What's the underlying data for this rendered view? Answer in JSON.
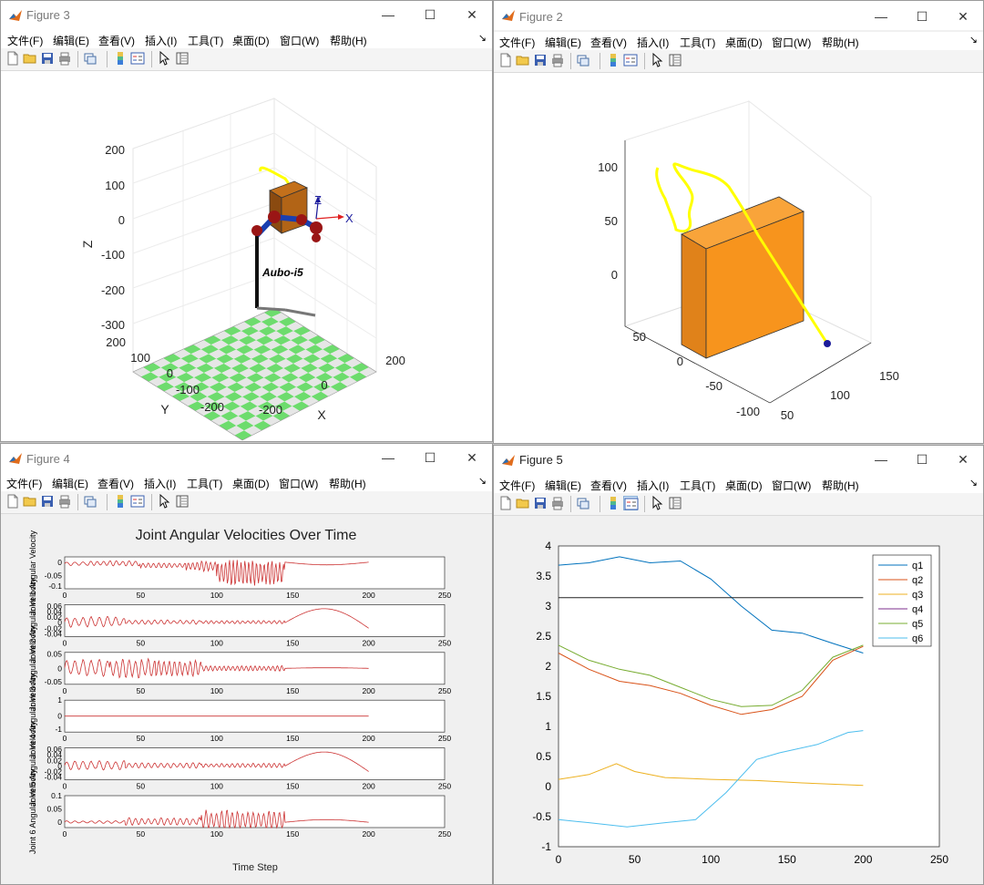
{
  "menu": [
    "文件(F)",
    "编辑(E)",
    "查看(V)",
    "插入(I)",
    "工具(T)",
    "桌面(D)",
    "窗口(W)",
    "帮助(H)"
  ],
  "window_buttons": {
    "minimize": "—",
    "maximize": "☐",
    "close": "✕"
  },
  "toolbar_icons": [
    "new-figure-icon",
    "open-file-icon",
    "save-icon",
    "print-icon",
    "link-plot-icon",
    "insert-colorbar-icon",
    "insert-legend-icon",
    "edit-plot-arrow-icon",
    "property-inspector-icon"
  ],
  "colors": {
    "accent_orange": "#f7941d",
    "path_yellow": "#ffff00",
    "checker_green": "#6ddc6d",
    "velocity_red": "#cc3333",
    "q_colors": [
      "#0072bd",
      "#d95319",
      "#edb120",
      "#7e2f8e",
      "#77ac30",
      "#4dbeee"
    ]
  },
  "fig3": {
    "title": "Figure 3",
    "label": "Aubo-i5",
    "xlabel": "X",
    "ylabel": "Y",
    "zlabel": "Z",
    "zticks": [
      "200",
      "100",
      "0",
      "-100",
      "-200",
      "-300"
    ],
    "yticks": [
      "200",
      "100",
      "0",
      "-100",
      "-200"
    ],
    "xticks": [
      "-200",
      "0",
      "200"
    ],
    "frame_x": "X",
    "frame_z": "Z"
  },
  "fig2": {
    "title": "Figure 2",
    "zticks": [
      "100",
      "50",
      "0"
    ],
    "yticks": [
      "50",
      "0",
      "-50",
      "-100"
    ],
    "xticks": [
      "50",
      "100",
      "150"
    ]
  },
  "fig4": {
    "title": "Figure 4",
    "chart_data": {
      "type": "line",
      "title": "Joint Angular Velocities Over Time",
      "xlabel": "Time Step",
      "xlim": [
        0,
        250
      ],
      "xticks": [
        "0",
        "50",
        "100",
        "150",
        "200",
        "250"
      ],
      "subplots": [
        {
          "ylabel": "Joint 1 Angular Velocity",
          "yticks": [
            "0",
            "-0.05",
            "-0.1"
          ],
          "ylim": [
            -0.1,
            0.02
          ],
          "segments": [
            [
              0,
              15,
              0.008,
              0.005
            ],
            [
              15,
              50,
              0.01,
              0.004
            ],
            [
              50,
              80,
              0.01,
              0.012
            ],
            [
              80,
              100,
              0.02,
              0.015
            ],
            [
              100,
              145,
              0.05,
              0.04
            ]
          ],
          "tail": {
            "start": 145,
            "end": 200,
            "amp": -0.01
          }
        },
        {
          "ylabel": "Joint 2 Angular Velocity",
          "yticks": [
            "0.06",
            "0.04",
            "0.02",
            "0",
            "-0.02",
            "-0.04"
          ],
          "ylim": [
            -0.05,
            0.065
          ],
          "segments": [
            [
              0,
              40,
              0.02,
              0.015
            ],
            [
              40,
              90,
              0.008,
              0.01
            ],
            [
              90,
              145,
              0.006,
              0.01
            ]
          ],
          "tail": {
            "start": 145,
            "end": 200,
            "amp": 0.06
          }
        },
        {
          "ylabel": "Joint 3 Angular Velocity",
          "yticks": [
            "0.05",
            "0",
            "-0.05"
          ],
          "ylim": [
            -0.055,
            0.055
          ],
          "segments": [
            [
              0,
              30,
              0.03,
              0.01
            ],
            [
              30,
              60,
              0.035,
              0.0
            ],
            [
              60,
              90,
              0.03,
              0.0
            ],
            [
              90,
              145,
              0.01,
              0.0
            ]
          ],
          "tail": {
            "start": 145,
            "end": 200,
            "amp": 0.002
          }
        },
        {
          "ylabel": "Joint 4 Angular Velocity",
          "yticks": [
            "1",
            "0",
            "-1"
          ],
          "ylim": [
            -1,
            1
          ],
          "segments": [],
          "tail": {
            "start": 0,
            "end": 200,
            "amp": 0
          }
        },
        {
          "ylabel": "Joint 5 Angular Velocity",
          "yticks": [
            "0.06",
            "0.04",
            "0.02",
            "0",
            "-0.02",
            "-0.04"
          ],
          "ylim": [
            -0.05,
            0.065
          ],
          "segments": [
            [
              0,
              40,
              0.018,
              0.012
            ],
            [
              40,
              90,
              0.01,
              0.01
            ],
            [
              90,
              145,
              0.008,
              0.01
            ]
          ],
          "tail": {
            "start": 145,
            "end": 200,
            "amp": 0.06
          }
        },
        {
          "ylabel": "Joint 6 Angular Velocity",
          "yticks": [
            "0.1",
            "0.05",
            "0"
          ],
          "ylim": [
            -0.02,
            0.1
          ],
          "segments": [
            [
              0,
              40,
              0.005,
              0.005
            ],
            [
              40,
              90,
              0.015,
              0.015
            ],
            [
              90,
              145,
              0.04,
              0.04
            ]
          ],
          "tail": {
            "start": 145,
            "end": 200,
            "amp": 0.01
          }
        }
      ]
    }
  },
  "fig5": {
    "title": "Figure 5",
    "chart_data": {
      "type": "line",
      "xlim": [
        0,
        250
      ],
      "ylim": [
        -1,
        4
      ],
      "xticks": [
        "0",
        "50",
        "100",
        "150",
        "200",
        "250"
      ],
      "yticks": [
        "4",
        "3.5",
        "3",
        "2.5",
        "2",
        "1.5",
        "1",
        "0.5",
        "0",
        "-0.5",
        "-1"
      ],
      "legend": "top-right",
      "series": [
        {
          "name": "q1",
          "color": "#0072bd",
          "points": [
            [
              0,
              3.68
            ],
            [
              20,
              3.72
            ],
            [
              40,
              3.82
            ],
            [
              60,
              3.72
            ],
            [
              80,
              3.75
            ],
            [
              100,
              3.45
            ],
            [
              120,
              3.0
            ],
            [
              140,
              2.6
            ],
            [
              160,
              2.55
            ],
            [
              180,
              2.38
            ],
            [
              200,
              2.22
            ]
          ]
        },
        {
          "name": "q2",
          "color": "#d95319",
          "points": [
            [
              0,
              2.22
            ],
            [
              20,
              1.95
            ],
            [
              40,
              1.75
            ],
            [
              60,
              1.68
            ],
            [
              80,
              1.55
            ],
            [
              100,
              1.35
            ],
            [
              120,
              1.2
            ],
            [
              140,
              1.28
            ],
            [
              160,
              1.5
            ],
            [
              180,
              2.1
            ],
            [
              200,
              2.33
            ]
          ]
        },
        {
          "name": "q3",
          "color": "#edb120",
          "points": [
            [
              0,
              0.12
            ],
            [
              20,
              0.2
            ],
            [
              38,
              0.38
            ],
            [
              50,
              0.25
            ],
            [
              70,
              0.15
            ],
            [
              100,
              0.12
            ],
            [
              130,
              0.1
            ],
            [
              160,
              0.06
            ],
            [
              200,
              0.02
            ]
          ]
        },
        {
          "name": "q4",
          "color": "#7e2f8e",
          "points": [
            [
              0,
              3.14
            ],
            [
              200,
              3.14
            ]
          ]
        },
        {
          "name": "q5",
          "color": "#77ac30",
          "points": [
            [
              0,
              2.35
            ],
            [
              20,
              2.1
            ],
            [
              40,
              1.95
            ],
            [
              60,
              1.85
            ],
            [
              80,
              1.65
            ],
            [
              100,
              1.45
            ],
            [
              120,
              1.33
            ],
            [
              140,
              1.35
            ],
            [
              160,
              1.6
            ],
            [
              180,
              2.15
            ],
            [
              200,
              2.35
            ]
          ]
        },
        {
          "name": "q6",
          "color": "#4dbeee",
          "points": [
            [
              0,
              -0.55
            ],
            [
              20,
              -0.6
            ],
            [
              45,
              -0.67
            ],
            [
              70,
              -0.6
            ],
            [
              90,
              -0.55
            ],
            [
              110,
              -0.1
            ],
            [
              130,
              0.45
            ],
            [
              145,
              0.56
            ],
            [
              170,
              0.7
            ],
            [
              190,
              0.9
            ],
            [
              200,
              0.93
            ]
          ]
        }
      ]
    }
  }
}
